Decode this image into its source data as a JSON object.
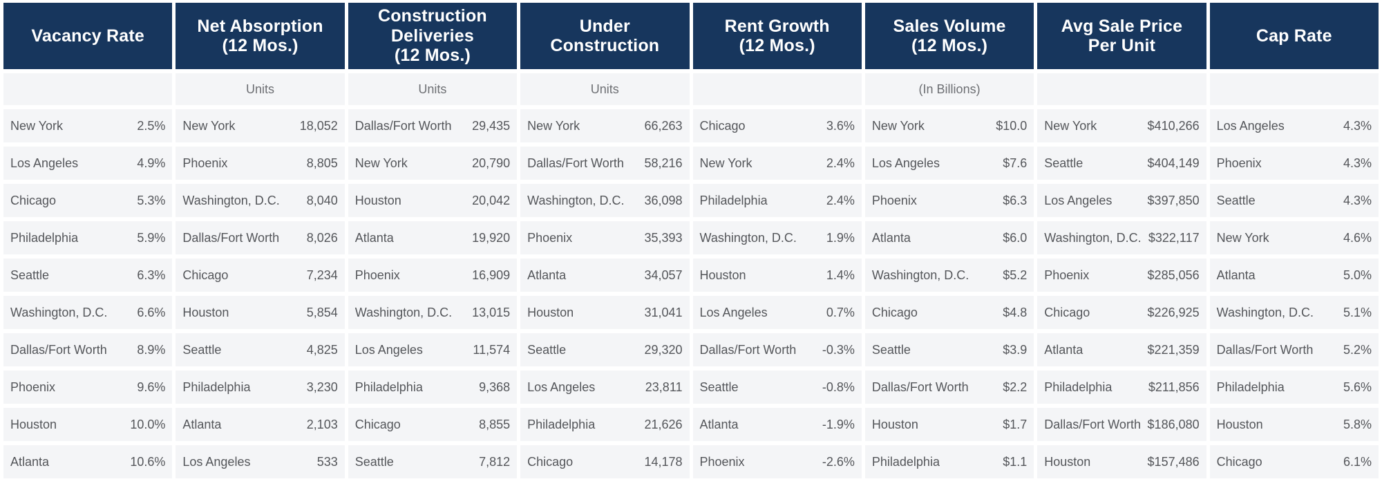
{
  "colors": {
    "header_bg": "#17365d",
    "header_text": "#ffffff",
    "row_bg": "#f4f5f7",
    "row_text": "#54565a",
    "subtitle_text": "#6d6f73"
  },
  "chart_data": {
    "type": "table",
    "columns": [
      {
        "header": "Vacancy Rate",
        "header_lines": [
          "Vacancy Rate"
        ],
        "subtitle": "",
        "rows": [
          {
            "city": "New York",
            "value": "2.5%"
          },
          {
            "city": "Los Angeles",
            "value": "4.9%"
          },
          {
            "city": "Chicago",
            "value": "5.3%"
          },
          {
            "city": "Philadelphia",
            "value": "5.9%"
          },
          {
            "city": "Seattle",
            "value": "6.3%"
          },
          {
            "city": "Washington, D.C.",
            "value": "6.6%"
          },
          {
            "city": "Dallas/Fort Worth",
            "value": "8.9%"
          },
          {
            "city": "Phoenix",
            "value": "9.6%"
          },
          {
            "city": "Houston",
            "value": "10.0%"
          },
          {
            "city": "Atlanta",
            "value": "10.6%"
          }
        ]
      },
      {
        "header": "Net Absorption (12 Mos.)",
        "header_lines": [
          "Net Absorption",
          "(12 Mos.)"
        ],
        "subtitle": "Units",
        "rows": [
          {
            "city": "New York",
            "value": "18,052"
          },
          {
            "city": "Phoenix",
            "value": "8,805"
          },
          {
            "city": "Washington, D.C.",
            "value": "8,040"
          },
          {
            "city": "Dallas/Fort Worth",
            "value": "8,026"
          },
          {
            "city": "Chicago",
            "value": "7,234"
          },
          {
            "city": "Houston",
            "value": "5,854"
          },
          {
            "city": "Seattle",
            "value": "4,825"
          },
          {
            "city": "Philadelphia",
            "value": "3,230"
          },
          {
            "city": "Atlanta",
            "value": "2,103"
          },
          {
            "city": "Los Angeles",
            "value": "533"
          }
        ]
      },
      {
        "header": "Construction Deliveries (12 Mos.)",
        "header_lines": [
          "Construction",
          "Deliveries",
          "(12 Mos.)"
        ],
        "subtitle": "Units",
        "rows": [
          {
            "city": "Dallas/Fort Worth",
            "value": "29,435"
          },
          {
            "city": "New York",
            "value": "20,790"
          },
          {
            "city": "Houston",
            "value": "20,042"
          },
          {
            "city": "Atlanta",
            "value": "19,920"
          },
          {
            "city": "Phoenix",
            "value": "16,909"
          },
          {
            "city": "Washington, D.C.",
            "value": "13,015"
          },
          {
            "city": "Los Angeles",
            "value": "11,574"
          },
          {
            "city": "Philadelphia",
            "value": "9,368"
          },
          {
            "city": "Chicago",
            "value": "8,855"
          },
          {
            "city": "Seattle",
            "value": "7,812"
          }
        ]
      },
      {
        "header": "Under Construction",
        "header_lines": [
          "Under",
          "Construction"
        ],
        "subtitle": "Units",
        "rows": [
          {
            "city": "New York",
            "value": "66,263"
          },
          {
            "city": "Dallas/Fort Worth",
            "value": "58,216"
          },
          {
            "city": "Washington, D.C.",
            "value": "36,098"
          },
          {
            "city": "Phoenix",
            "value": "35,393"
          },
          {
            "city": "Atlanta",
            "value": "34,057"
          },
          {
            "city": "Houston",
            "value": "31,041"
          },
          {
            "city": "Seattle",
            "value": "29,320"
          },
          {
            "city": "Los Angeles",
            "value": "23,811"
          },
          {
            "city": "Philadelphia",
            "value": "21,626"
          },
          {
            "city": "Chicago",
            "value": "14,178"
          }
        ]
      },
      {
        "header": "Rent Growth (12 Mos.)",
        "header_lines": [
          "Rent Growth",
          "(12 Mos.)"
        ],
        "subtitle": "",
        "rows": [
          {
            "city": "Chicago",
            "value": "3.6%"
          },
          {
            "city": "New York",
            "value": "2.4%"
          },
          {
            "city": "Philadelphia",
            "value": "2.4%"
          },
          {
            "city": "Washington, D.C.",
            "value": "1.9%"
          },
          {
            "city": "Houston",
            "value": "1.4%"
          },
          {
            "city": "Los Angeles",
            "value": "0.7%"
          },
          {
            "city": "Dallas/Fort Worth",
            "value": "-0.3%"
          },
          {
            "city": "Seattle",
            "value": "-0.8%"
          },
          {
            "city": "Atlanta",
            "value": "-1.9%"
          },
          {
            "city": "Phoenix",
            "value": "-2.6%"
          }
        ]
      },
      {
        "header": "Sales Volume (12 Mos.)",
        "header_lines": [
          "Sales Volume",
          "(12 Mos.)"
        ],
        "subtitle": "(In Billions)",
        "rows": [
          {
            "city": "New York",
            "value": "$10.0"
          },
          {
            "city": "Los Angeles",
            "value": "$7.6"
          },
          {
            "city": "Phoenix",
            "value": "$6.3"
          },
          {
            "city": "Atlanta",
            "value": "$6.0"
          },
          {
            "city": "Washington, D.C.",
            "value": "$5.2"
          },
          {
            "city": "Chicago",
            "value": "$4.8"
          },
          {
            "city": "Seattle",
            "value": "$3.9"
          },
          {
            "city": "Dallas/Fort Worth",
            "value": "$2.2"
          },
          {
            "city": "Houston",
            "value": "$1.7"
          },
          {
            "city": "Philadelphia",
            "value": "$1.1"
          }
        ]
      },
      {
        "header": "Avg Sale Price Per Unit",
        "header_lines": [
          "Avg Sale Price",
          "Per Unit"
        ],
        "subtitle": "",
        "rows": [
          {
            "city": "New York",
            "value": "$410,266"
          },
          {
            "city": "Seattle",
            "value": "$404,149"
          },
          {
            "city": "Los Angeles",
            "value": "$397,850"
          },
          {
            "city": "Washington, D.C.",
            "value": "$322,117"
          },
          {
            "city": "Phoenix",
            "value": "$285,056"
          },
          {
            "city": "Chicago",
            "value": "$226,925"
          },
          {
            "city": "Atlanta",
            "value": "$221,359"
          },
          {
            "city": "Philadelphia",
            "value": "$211,856"
          },
          {
            "city": "Dallas/Fort Worth",
            "value": "$186,080"
          },
          {
            "city": "Houston",
            "value": "$157,486"
          }
        ]
      },
      {
        "header": "Cap Rate",
        "header_lines": [
          "Cap Rate"
        ],
        "subtitle": "",
        "rows": [
          {
            "city": "Los Angeles",
            "value": "4.3%"
          },
          {
            "city": "Phoenix",
            "value": "4.3%"
          },
          {
            "city": "Seattle",
            "value": "4.3%"
          },
          {
            "city": "New York",
            "value": "4.6%"
          },
          {
            "city": "Atlanta",
            "value": "5.0%"
          },
          {
            "city": "Washington, D.C.",
            "value": "5.1%"
          },
          {
            "city": "Dallas/Fort Worth",
            "value": "5.2%"
          },
          {
            "city": "Philadelphia",
            "value": "5.6%"
          },
          {
            "city": "Houston",
            "value": "5.8%"
          },
          {
            "city": "Chicago",
            "value": "6.1%"
          }
        ]
      }
    ]
  }
}
